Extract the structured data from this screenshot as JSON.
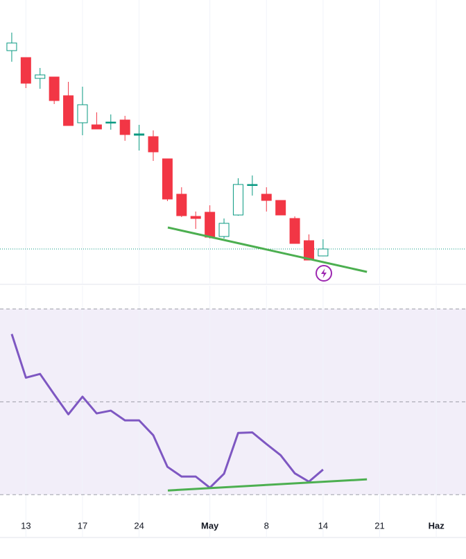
{
  "chart_data": {
    "type": "candlestick",
    "x": [
      0,
      1,
      2,
      3,
      4,
      5,
      6,
      7,
      8,
      9,
      10,
      11,
      12,
      13,
      14,
      15,
      16,
      17,
      18,
      19,
      20,
      21,
      22
    ],
    "open": [
      337,
      327,
      297,
      299,
      272,
      233,
      230,
      234,
      237,
      215,
      213,
      181,
      130,
      98,
      104,
      69,
      100,
      143,
      130,
      121,
      95,
      63,
      41
    ],
    "high": [
      363,
      327,
      312,
      299,
      292,
      285,
      248,
      245,
      243,
      230,
      222,
      181,
      140,
      105,
      114,
      95,
      153,
      157,
      140,
      121,
      98,
      72,
      65
    ],
    "low": [
      321,
      283,
      282,
      260,
      229,
      215,
      224,
      223,
      207,
      193,
      178,
      120,
      97,
      80,
      66,
      66,
      99,
      128,
      105,
      100,
      59,
      35,
      41
    ],
    "close": [
      348,
      290,
      302,
      265,
      229,
      259,
      224,
      234,
      216,
      217,
      191,
      123,
      99,
      95,
      68,
      88,
      144,
      144,
      121,
      100,
      59,
      35,
      51
    ],
    "up_color": "#089981",
    "down_color": "#f23645",
    "xlim": [
      -0.83,
      32.1
    ],
    "ylim": [
      0,
      410
    ],
    "xticks": [
      {
        "value": 1,
        "label": "13"
      },
      {
        "value": 5,
        "label": "17"
      },
      {
        "value": 9,
        "label": "24"
      },
      {
        "value": 14,
        "label": "May"
      },
      {
        "value": 18,
        "label": "8"
      },
      {
        "value": 22,
        "label": "14"
      },
      {
        "value": 26,
        "label": "21"
      },
      {
        "value": 30,
        "label": "Haz"
      }
    ],
    "last_price": 51,
    "trendline": {
      "x": [
        11.03,
        25.1
      ],
      "y": [
        82,
        18
      ],
      "color": "#4caf50"
    },
    "rsi": {
      "values": [
        64.6,
        55.2,
        56.0,
        51.6,
        47.3,
        51.1,
        47.5,
        48.1,
        46.0,
        46.0,
        42.8,
        36.0,
        33.9,
        33.9,
        31.5,
        34.5,
        43.3,
        43.4,
        40.9,
        38.5,
        34.6,
        32.8,
        35.4
      ],
      "color": "#7e57c2",
      "ylim": [
        26,
        75
      ],
      "levels": [
        70,
        50,
        30
      ],
      "trendline": {
        "x": [
          11.03,
          25.1
        ],
        "y": [
          30.9,
          33.3
        ],
        "color": "#4caf50"
      }
    },
    "grid": true
  }
}
